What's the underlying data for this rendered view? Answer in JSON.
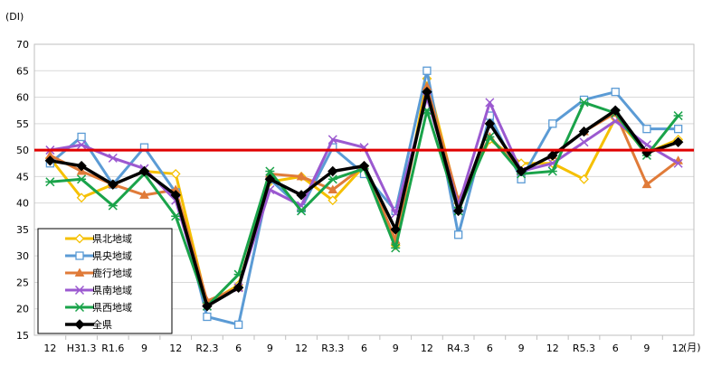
{
  "chart_data": {
    "type": "line",
    "y_unit": "(DI)",
    "x_unit": "(月)",
    "ylim": [
      15,
      70
    ],
    "y_ticks": [
      15,
      20,
      25,
      30,
      35,
      40,
      45,
      50,
      55,
      60,
      65,
      70
    ],
    "x_tick_labels": [
      "12",
      "H31.3",
      "R1.6",
      "9",
      "12",
      "R2.3",
      "6",
      "9",
      "12",
      "R3.3",
      "6",
      "9",
      "12",
      "R4.3",
      "6",
      "9",
      "12",
      "R5.3",
      "6",
      "9",
      "12"
    ],
    "grid": true,
    "legend_position": "bottom-left",
    "reference_line": {
      "value": 50,
      "color": "#e00000"
    },
    "series": [
      {
        "name": "県北地域",
        "color": "#f5c000",
        "marker": "diamond-open",
        "values": [
          48.5,
          41,
          43.5,
          46,
          45.5,
          21,
          24.5,
          44,
          45,
          40.5,
          47,
          32,
          63.5,
          40,
          52,
          47.5,
          47.5,
          44.5,
          56,
          49.5,
          52
        ]
      },
      {
        "name": "県央地域",
        "color": "#5b9bd5",
        "marker": "square-open",
        "values": [
          47.5,
          52.5,
          43.5,
          50.5,
          42,
          18.5,
          17,
          44.5,
          39,
          50.5,
          45.5,
          38.5,
          65,
          34,
          56.5,
          44.5,
          55,
          59.5,
          61,
          54,
          54
        ]
      },
      {
        "name": "鹿行地域",
        "color": "#e07b39",
        "marker": "triangle",
        "values": [
          49,
          46,
          43.5,
          41.5,
          42.5,
          21.5,
          24,
          45.5,
          45,
          42.5,
          47,
          33,
          62,
          40.5,
          52.5,
          46,
          49,
          53.5,
          57,
          43.5,
          48
        ]
      },
      {
        "name": "県南地域",
        "color": "#9b59d0",
        "marker": "x",
        "values": [
          50,
          51,
          48.5,
          46.5,
          40.5,
          20.5,
          24,
          42.5,
          39.5,
          52,
          50.5,
          38,
          60,
          39.5,
          59,
          46,
          47.5,
          51.5,
          55.5,
          51,
          47.5
        ]
      },
      {
        "name": "県西地域",
        "color": "#1aa34a",
        "marker": "asterisk",
        "values": [
          44,
          44.5,
          39.5,
          45.5,
          37.5,
          20.5,
          26.5,
          46,
          38.5,
          44.5,
          46.5,
          31.5,
          57.5,
          38.5,
          52.5,
          45.5,
          46,
          59,
          57,
          49,
          56.5
        ]
      },
      {
        "name": "全県",
        "color": "#000000",
        "marker": "diamond-filled",
        "values": [
          48,
          47,
          43.5,
          46,
          41.5,
          20.5,
          24,
          44.5,
          41.5,
          46,
          47,
          35,
          61,
          38.5,
          55,
          46,
          49,
          53.5,
          57.5,
          49.5,
          51.5
        ]
      }
    ]
  }
}
